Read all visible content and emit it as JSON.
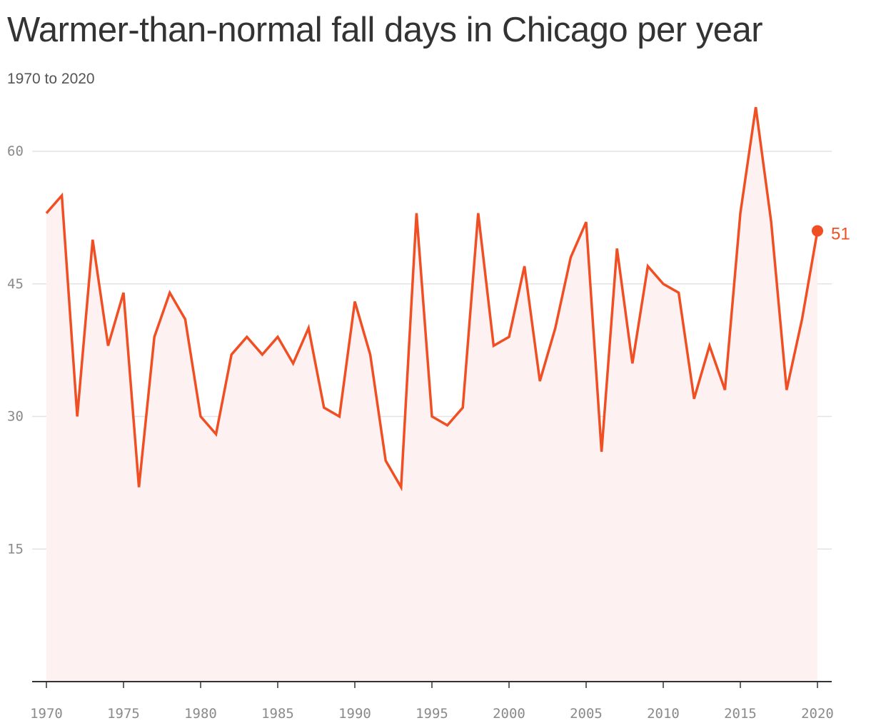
{
  "title": "Warmer-than-normal fall days in Chicago per year",
  "subtitle": "1970 to 2020",
  "colors": {
    "line": "#f04e23",
    "area": "#fdf1f1",
    "grid": "#e3e3e3",
    "axis": "#333333",
    "tick_text": "#8a8a8a"
  },
  "chart_data": {
    "type": "area",
    "title": "Warmer-than-normal fall days in Chicago per year",
    "subtitle": "1970 to 2020",
    "xlabel": "",
    "ylabel": "",
    "x": [
      1970,
      1971,
      1972,
      1973,
      1974,
      1975,
      1976,
      1977,
      1978,
      1979,
      1980,
      1981,
      1982,
      1983,
      1984,
      1985,
      1986,
      1987,
      1988,
      1989,
      1990,
      1991,
      1992,
      1993,
      1994,
      1995,
      1996,
      1997,
      1998,
      1999,
      2000,
      2001,
      2002,
      2003,
      2004,
      2005,
      2006,
      2007,
      2008,
      2009,
      2010,
      2011,
      2012,
      2013,
      2014,
      2015,
      2016,
      2017,
      2018,
      2019,
      2020
    ],
    "series": [
      {
        "values": [
          53,
          55,
          30,
          50,
          38,
          44,
          22,
          39,
          44,
          41,
          30,
          28,
          37,
          39,
          37,
          39,
          36,
          40,
          31,
          30,
          43,
          37,
          25,
          22,
          53,
          30,
          29,
          31,
          53,
          38,
          39,
          47,
          34,
          40,
          48,
          52,
          26,
          49,
          36,
          47,
          45,
          44,
          32,
          38,
          33,
          53,
          65,
          52,
          33,
          41,
          51
        ]
      }
    ],
    "xlim": [
      1970,
      2020
    ],
    "ylim": [
      0,
      65
    ],
    "x_ticks": [
      1970,
      1975,
      1980,
      1985,
      1990,
      1995,
      2000,
      2005,
      2010,
      2015,
      2020
    ],
    "y_ticks": [
      15,
      30,
      45,
      60
    ],
    "grid": true,
    "end_label": "51"
  }
}
